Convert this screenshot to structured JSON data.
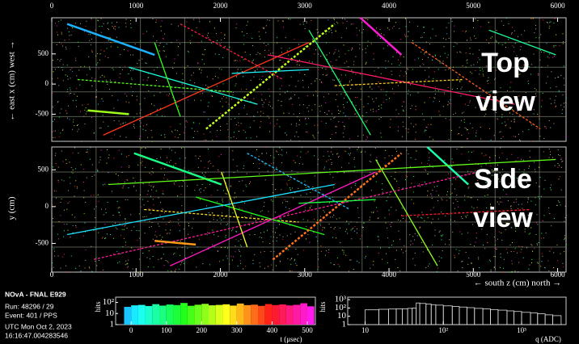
{
  "top_view": {
    "title_lines": [
      "Top",
      "view"
    ],
    "axis_label": "← east   x (cm)   west →",
    "xlim": [
      0,
      6100
    ],
    "xticks": [
      0,
      1000,
      2000,
      3000,
      4000,
      5000,
      6000
    ],
    "ylim": [
      -950,
      1100
    ],
    "yticks": [
      500,
      0,
      -500
    ]
  },
  "side_view": {
    "title_lines": [
      "Side",
      "view"
    ],
    "axis_label": "y (cm)",
    "x_axis_label": "← south   z (cm)   north →",
    "xlim": [
      0,
      6100
    ],
    "xticks": [
      0,
      1000,
      2000,
      3000,
      4000,
      5000,
      6000
    ],
    "ylim": [
      -890,
      810
    ],
    "yticks": [
      500,
      0,
      -500
    ]
  },
  "run_info": [
    "NOvA - FNAL E929",
    "Run:   48296 / 29",
    "Event: 401 / PPS",
    "UTC Mon Oct 2, 2023",
    "16:16:47.004283546"
  ],
  "time_histogram": {
    "type": "histogram",
    "x_label": "t (μsec)",
    "y_label": "hits",
    "xlim": [
      -44,
      523
    ],
    "xticks": [
      0,
      100,
      200,
      300,
      400,
      500
    ],
    "log_y": true,
    "ylim": [
      1,
      300
    ],
    "yticks": [
      1,
      10,
      {
        "value": 100,
        "label": "10²"
      }
    ],
    "bins": [
      -20,
      0,
      20,
      40,
      60,
      80,
      100,
      120,
      140,
      160,
      180,
      200,
      220,
      240,
      260,
      280,
      300,
      320,
      340,
      360,
      380,
      400,
      420,
      440,
      460,
      480,
      500,
      520
    ],
    "counts": [
      40,
      55,
      60,
      48,
      70,
      52,
      65,
      58,
      90,
      50,
      62,
      75,
      55,
      60,
      68,
      52,
      80,
      57,
      63,
      49,
      72,
      58,
      66,
      54,
      61,
      85,
      45
    ]
  },
  "charge_histogram": {
    "type": "histogram",
    "x_label": "q (ADC)",
    "y_label": "hits",
    "log_x": true,
    "log_y": true,
    "xlim": [
      6,
      3700
    ],
    "xticks": [
      10,
      {
        "value": 100,
        "label": "10²"
      },
      {
        "value": 1000,
        "label": "10³"
      }
    ],
    "ylim": [
      1,
      2000
    ],
    "yticks": [
      1,
      10,
      {
        "value": 100,
        "label": "10²"
      },
      {
        "value": 1000,
        "label": "10³"
      }
    ],
    "bins": [
      10,
      15,
      20,
      25,
      30,
      35,
      40,
      45,
      50,
      60,
      70,
      80,
      100,
      130,
      160,
      200,
      250,
      320,
      400,
      500,
      650,
      800,
      1000,
      1300,
      1600,
      2000,
      2500,
      3200
    ],
    "counts": [
      60,
      70,
      75,
      80,
      80,
      90,
      100,
      400,
      350,
      300,
      250,
      220,
      180,
      150,
      130,
      110,
      90,
      80,
      65,
      55,
      45,
      38,
      30,
      25,
      20,
      15,
      12
    ]
  }
}
